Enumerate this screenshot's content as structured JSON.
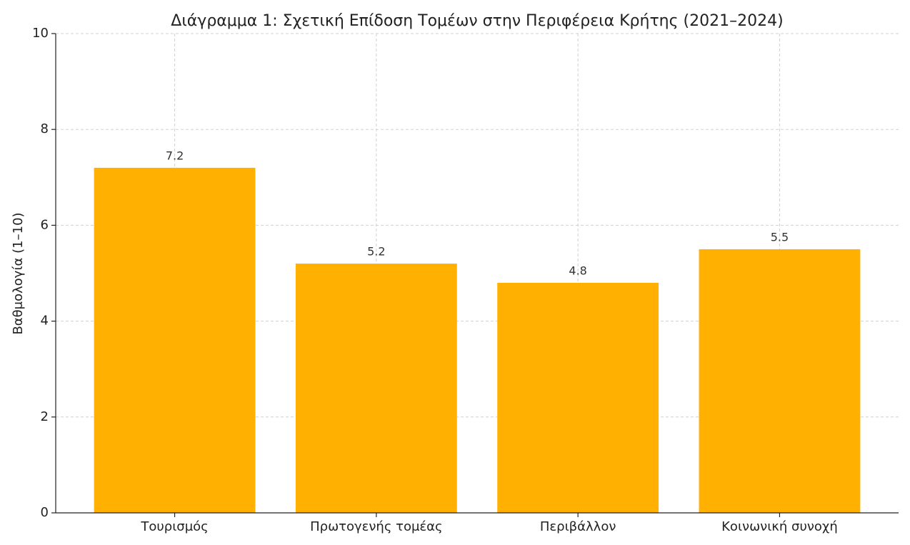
{
  "chart_data": {
    "type": "bar",
    "title": "Διάγραμμα 1: Σχετική Επίδοση Τομέων στην Περιφέρεια Κρήτης (2021–2024)",
    "y_label": "Βαθμολογία (1–10)",
    "categories": [
      "Τουρισμός",
      "Πρωτογενής τομέας",
      "Περιβάλλον",
      "Κοινωνική συνοχή"
    ],
    "values": [
      7.2,
      5.2,
      4.8,
      5.5
    ],
    "color": "#ffb000",
    "ylim": [
      0,
      10
    ],
    "yticks": [
      0,
      2,
      4,
      6,
      8,
      10
    ],
    "grid": true
  }
}
